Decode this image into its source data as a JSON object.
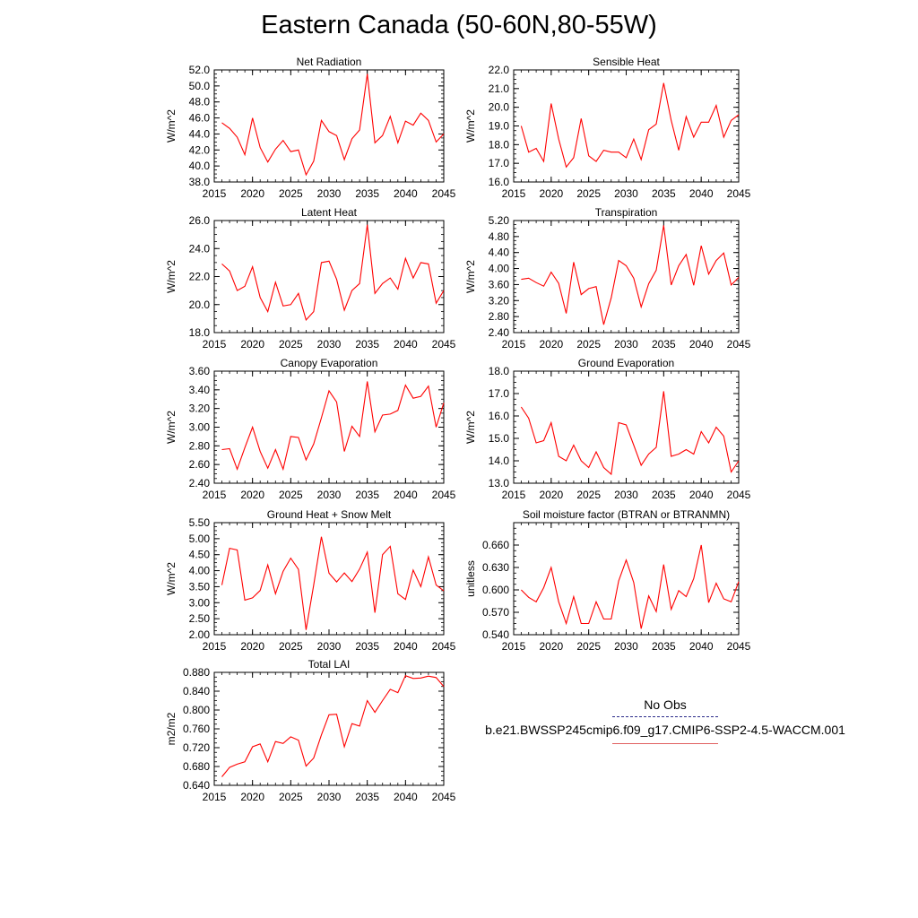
{
  "title": "Eastern Canada (50-60N,80-55W)",
  "legend": {
    "obs_label": "No Obs",
    "case_label": "b.e21.BWSSP245cmip6.f09_g17.CMIP6-SSP2-4.5-WACCM.001",
    "obs_color": "#2a2a8a",
    "case_color": "#e06060"
  },
  "chart_data": [
    {
      "type": "line",
      "title": "Net Radiation",
      "ylabel": "W/m^2",
      "xlim": [
        2015,
        2045
      ],
      "ylim": [
        38,
        52
      ],
      "xticks": [
        2015,
        2020,
        2025,
        2030,
        2035,
        2040,
        2045
      ],
      "xtick_labels": [
        "2015",
        "2020",
        "2025",
        "2030",
        "2035",
        "2040",
        "2045"
      ],
      "yticks": [
        38,
        40,
        42,
        44,
        46,
        48,
        50,
        52
      ],
      "ytick_labels": [
        "38.0",
        "40.0",
        "42.0",
        "44.0",
        "46.0",
        "48.0",
        "50.0",
        "52.0"
      ],
      "x": [
        2016,
        2017,
        2018,
        2019,
        2020,
        2021,
        2022,
        2023,
        2024,
        2025,
        2026,
        2027,
        2028,
        2029,
        2030,
        2031,
        2032,
        2033,
        2034,
        2035,
        2036,
        2037,
        2038,
        2039,
        2040,
        2041,
        2042,
        2043,
        2044,
        2045
      ],
      "series": [
        {
          "color": "#ff0000",
          "values": [
            45.4,
            44.7,
            43.6,
            41.4,
            46.0,
            42.3,
            40.5,
            42.1,
            43.2,
            41.8,
            42.0,
            38.9,
            40.6,
            45.7,
            44.3,
            43.8,
            40.8,
            43.4,
            44.5,
            51.5,
            42.9,
            43.8,
            46.2,
            42.9,
            45.6,
            45.1,
            46.6,
            45.7,
            43.0,
            44.0
          ]
        }
      ]
    },
    {
      "type": "line",
      "title": "Sensible Heat",
      "ylabel": "W/m^2",
      "xlim": [
        2015,
        2045
      ],
      "ylim": [
        16,
        22
      ],
      "xticks": [
        2015,
        2020,
        2025,
        2030,
        2035,
        2040,
        2045
      ],
      "xtick_labels": [
        "2015",
        "2020",
        "2025",
        "2030",
        "2035",
        "2040",
        "2045"
      ],
      "yticks": [
        16,
        17,
        18,
        19,
        20,
        21,
        22
      ],
      "ytick_labels": [
        "16.0",
        "17.0",
        "18.0",
        "19.0",
        "20.0",
        "21.0",
        "22.0"
      ],
      "x": [
        2016,
        2017,
        2018,
        2019,
        2020,
        2021,
        2022,
        2023,
        2024,
        2025,
        2026,
        2027,
        2028,
        2029,
        2030,
        2031,
        2032,
        2033,
        2034,
        2035,
        2036,
        2037,
        2038,
        2039,
        2040,
        2041,
        2042,
        2043,
        2044,
        2045
      ],
      "series": [
        {
          "color": "#ff0000",
          "values": [
            19.0,
            17.6,
            17.8,
            17.1,
            20.2,
            18.3,
            16.8,
            17.3,
            19.4,
            17.4,
            17.1,
            17.7,
            17.6,
            17.6,
            17.3,
            18.3,
            17.2,
            18.8,
            19.1,
            21.3,
            19.3,
            17.7,
            19.5,
            18.4,
            19.2,
            19.2,
            20.1,
            18.4,
            19.3,
            19.6
          ]
        }
      ]
    },
    {
      "type": "line",
      "title": "Latent Heat",
      "ylabel": "W/m^2",
      "xlim": [
        2015,
        2045
      ],
      "ylim": [
        18,
        26
      ],
      "xticks": [
        2015,
        2020,
        2025,
        2030,
        2035,
        2040,
        2045
      ],
      "xtick_labels": [
        "2015",
        "2020",
        "2025",
        "2030",
        "2035",
        "2040",
        "2045"
      ],
      "yticks": [
        18,
        20,
        22,
        24,
        26
      ],
      "ytick_labels": [
        "18.0",
        "20.0",
        "22.0",
        "24.0",
        "26.0"
      ],
      "x": [
        2016,
        2017,
        2018,
        2019,
        2020,
        2021,
        2022,
        2023,
        2024,
        2025,
        2026,
        2027,
        2028,
        2029,
        2030,
        2031,
        2032,
        2033,
        2034,
        2035,
        2036,
        2037,
        2038,
        2039,
        2040,
        2041,
        2042,
        2043,
        2044,
        2045
      ],
      "series": [
        {
          "color": "#ff0000",
          "values": [
            22.9,
            22.4,
            21.0,
            21.3,
            22.7,
            20.5,
            19.5,
            21.6,
            19.9,
            20.0,
            20.8,
            18.9,
            19.5,
            23.0,
            23.1,
            21.8,
            19.6,
            21.0,
            21.5,
            25.7,
            20.8,
            21.5,
            21.9,
            21.1,
            23.3,
            21.9,
            23.0,
            22.9,
            20.1,
            21.0
          ]
        }
      ]
    },
    {
      "type": "line",
      "title": "Transpiration",
      "ylabel": "W/m^2",
      "xlim": [
        2015,
        2045
      ],
      "ylim": [
        2.4,
        5.2
      ],
      "xticks": [
        2015,
        2020,
        2025,
        2030,
        2035,
        2040,
        2045
      ],
      "xtick_labels": [
        "2015",
        "2020",
        "2025",
        "2030",
        "2035",
        "2040",
        "2045"
      ],
      "yticks": [
        2.4,
        2.8,
        3.2,
        3.6,
        4.0,
        4.4,
        4.8,
        5.2
      ],
      "ytick_labels": [
        "2.40",
        "2.80",
        "3.20",
        "3.60",
        "4.00",
        "4.40",
        "4.80",
        "5.20"
      ],
      "x": [
        2016,
        2017,
        2018,
        2019,
        2020,
        2021,
        2022,
        2023,
        2024,
        2025,
        2026,
        2027,
        2028,
        2029,
        2030,
        2031,
        2032,
        2033,
        2034,
        2035,
        2036,
        2037,
        2038,
        2039,
        2040,
        2041,
        2042,
        2043,
        2044,
        2045
      ],
      "series": [
        {
          "color": "#ff0000",
          "values": [
            3.73,
            3.76,
            3.65,
            3.56,
            3.91,
            3.63,
            2.88,
            4.16,
            3.35,
            3.5,
            3.55,
            2.6,
            3.27,
            4.2,
            4.07,
            3.76,
            3.04,
            3.62,
            3.96,
            5.08,
            3.59,
            4.07,
            4.35,
            3.58,
            4.57,
            3.86,
            4.2,
            4.39,
            3.59,
            3.78
          ]
        }
      ]
    },
    {
      "type": "line",
      "title": "Canopy Evaporation",
      "ylabel": "W/m^2",
      "xlim": [
        2015,
        2045
      ],
      "ylim": [
        2.4,
        3.6
      ],
      "xticks": [
        2015,
        2020,
        2025,
        2030,
        2035,
        2040,
        2045
      ],
      "xtick_labels": [
        "2015",
        "2020",
        "2025",
        "2030",
        "2035",
        "2040",
        "2045"
      ],
      "yticks": [
        2.4,
        2.6,
        2.8,
        3.0,
        3.2,
        3.4,
        3.6
      ],
      "ytick_labels": [
        "2.40",
        "2.60",
        "2.80",
        "3.00",
        "3.20",
        "3.40",
        "3.60"
      ],
      "x": [
        2016,
        2017,
        2018,
        2019,
        2020,
        2021,
        2022,
        2023,
        2024,
        2025,
        2026,
        2027,
        2028,
        2029,
        2030,
        2031,
        2032,
        2033,
        2034,
        2035,
        2036,
        2037,
        2038,
        2039,
        2040,
        2041,
        2042,
        2043,
        2044,
        2045
      ],
      "series": [
        {
          "color": "#ff0000",
          "values": [
            2.76,
            2.77,
            2.55,
            2.78,
            3.0,
            2.74,
            2.56,
            2.76,
            2.55,
            2.9,
            2.89,
            2.65,
            2.82,
            3.1,
            3.39,
            3.27,
            2.74,
            3.01,
            2.9,
            3.49,
            2.95,
            3.13,
            3.14,
            3.18,
            3.45,
            3.31,
            3.33,
            3.44,
            3.0,
            3.26
          ]
        }
      ]
    },
    {
      "type": "line",
      "title": "Ground Evaporation",
      "ylabel": "W/m^2",
      "xlim": [
        2015,
        2045
      ],
      "ylim": [
        13,
        18
      ],
      "xticks": [
        2015,
        2020,
        2025,
        2030,
        2035,
        2040,
        2045
      ],
      "xtick_labels": [
        "2015",
        "2020",
        "2025",
        "2030",
        "2035",
        "2040",
        "2045"
      ],
      "yticks": [
        13,
        14,
        15,
        16,
        17,
        18
      ],
      "ytick_labels": [
        "13.0",
        "14.0",
        "15.0",
        "16.0",
        "17.0",
        "18.0"
      ],
      "x": [
        2016,
        2017,
        2018,
        2019,
        2020,
        2021,
        2022,
        2023,
        2024,
        2025,
        2026,
        2027,
        2028,
        2029,
        2030,
        2031,
        2032,
        2033,
        2034,
        2035,
        2036,
        2037,
        2038,
        2039,
        2040,
        2041,
        2042,
        2043,
        2044,
        2045
      ],
      "series": [
        {
          "color": "#ff0000",
          "values": [
            16.4,
            15.9,
            14.8,
            14.9,
            15.7,
            14.2,
            14.0,
            14.7,
            14.0,
            13.7,
            14.4,
            13.7,
            13.4,
            15.7,
            15.6,
            14.7,
            13.8,
            14.3,
            14.6,
            17.1,
            14.2,
            14.3,
            14.5,
            14.3,
            15.3,
            14.8,
            15.5,
            15.1,
            13.5,
            14.0
          ]
        }
      ]
    },
    {
      "type": "line",
      "title": "Ground Heat + Snow Melt",
      "ylabel": "W/m^2",
      "xlim": [
        2015,
        2045
      ],
      "ylim": [
        2.0,
        5.5
      ],
      "xticks": [
        2015,
        2020,
        2025,
        2030,
        2035,
        2040,
        2045
      ],
      "xtick_labels": [
        "2015",
        "2020",
        "2025",
        "2030",
        "2035",
        "2040",
        "2045"
      ],
      "yticks": [
        2.0,
        2.5,
        3.0,
        3.5,
        4.0,
        4.5,
        5.0,
        5.5
      ],
      "ytick_labels": [
        "2.00",
        "2.50",
        "3.00",
        "3.50",
        "4.00",
        "4.50",
        "5.00",
        "5.50"
      ],
      "x": [
        2016,
        2017,
        2018,
        2019,
        2020,
        2021,
        2022,
        2023,
        2024,
        2025,
        2026,
        2027,
        2028,
        2029,
        2030,
        2031,
        2032,
        2033,
        2034,
        2035,
        2036,
        2037,
        2038,
        2039,
        2040,
        2041,
        2042,
        2043,
        2044,
        2045
      ],
      "series": [
        {
          "color": "#ff0000",
          "values": [
            3.55,
            4.7,
            4.65,
            3.08,
            3.15,
            3.38,
            4.18,
            3.28,
            3.98,
            4.39,
            4.04,
            2.15,
            3.55,
            5.06,
            3.92,
            3.65,
            3.93,
            3.66,
            4.05,
            4.58,
            2.69,
            4.5,
            4.76,
            3.28,
            3.1,
            4.02,
            3.5,
            4.43,
            3.55,
            3.37
          ]
        }
      ]
    },
    {
      "type": "line",
      "title": "Soil moisture factor (BTRAN or BTRANMN)",
      "ylabel": "unitless",
      "xlim": [
        2015,
        2045
      ],
      "ylim": [
        0.54,
        0.69
      ],
      "xticks": [
        2015,
        2020,
        2025,
        2030,
        2035,
        2040,
        2045
      ],
      "xtick_labels": [
        "2015",
        "2020",
        "2025",
        "2030",
        "2035",
        "2040",
        "2045"
      ],
      "yticks": [
        0.54,
        0.57,
        0.6,
        0.63,
        0.66
      ],
      "ytick_labels": [
        "0.540",
        "0.570",
        "0.600",
        "0.630",
        "0.660"
      ],
      "x": [
        2016,
        2017,
        2018,
        2019,
        2020,
        2021,
        2022,
        2023,
        2024,
        2025,
        2026,
        2027,
        2028,
        2029,
        2030,
        2031,
        2032,
        2033,
        2034,
        2035,
        2036,
        2037,
        2038,
        2039,
        2040,
        2041,
        2042,
        2043,
        2044,
        2045
      ],
      "series": [
        {
          "color": "#ff0000",
          "values": [
            0.6,
            0.59,
            0.584,
            0.603,
            0.63,
            0.584,
            0.555,
            0.591,
            0.555,
            0.555,
            0.584,
            0.561,
            0.561,
            0.612,
            0.64,
            0.61,
            0.548,
            0.592,
            0.571,
            0.634,
            0.574,
            0.599,
            0.591,
            0.615,
            0.66,
            0.583,
            0.609,
            0.588,
            0.584,
            0.611
          ]
        }
      ]
    },
    {
      "type": "line",
      "title": "Total LAI",
      "ylabel": "m2/m2",
      "xlim": [
        2015,
        2045
      ],
      "ylim": [
        0.64,
        0.88
      ],
      "xticks": [
        2015,
        2020,
        2025,
        2030,
        2035,
        2040,
        2045
      ],
      "xtick_labels": [
        "2015",
        "2020",
        "2025",
        "2030",
        "2035",
        "2040",
        "2045"
      ],
      "yticks": [
        0.64,
        0.68,
        0.72,
        0.76,
        0.8,
        0.84,
        0.88
      ],
      "ytick_labels": [
        "0.640",
        "0.680",
        "0.720",
        "0.760",
        "0.800",
        "0.840",
        "0.880"
      ],
      "x": [
        2016,
        2017,
        2018,
        2019,
        2020,
        2021,
        2022,
        2023,
        2024,
        2025,
        2026,
        2027,
        2028,
        2029,
        2030,
        2031,
        2032,
        2033,
        2034,
        2035,
        2036,
        2037,
        2038,
        2039,
        2040,
        2041,
        2042,
        2043,
        2044,
        2045
      ],
      "series": [
        {
          "color": "#ff0000",
          "values": [
            0.658,
            0.678,
            0.685,
            0.69,
            0.722,
            0.728,
            0.69,
            0.733,
            0.729,
            0.743,
            0.736,
            0.681,
            0.698,
            0.747,
            0.79,
            0.791,
            0.722,
            0.771,
            0.766,
            0.82,
            0.795,
            0.82,
            0.844,
            0.837,
            0.873,
            0.867,
            0.868,
            0.872,
            0.869,
            0.85
          ]
        }
      ]
    }
  ]
}
